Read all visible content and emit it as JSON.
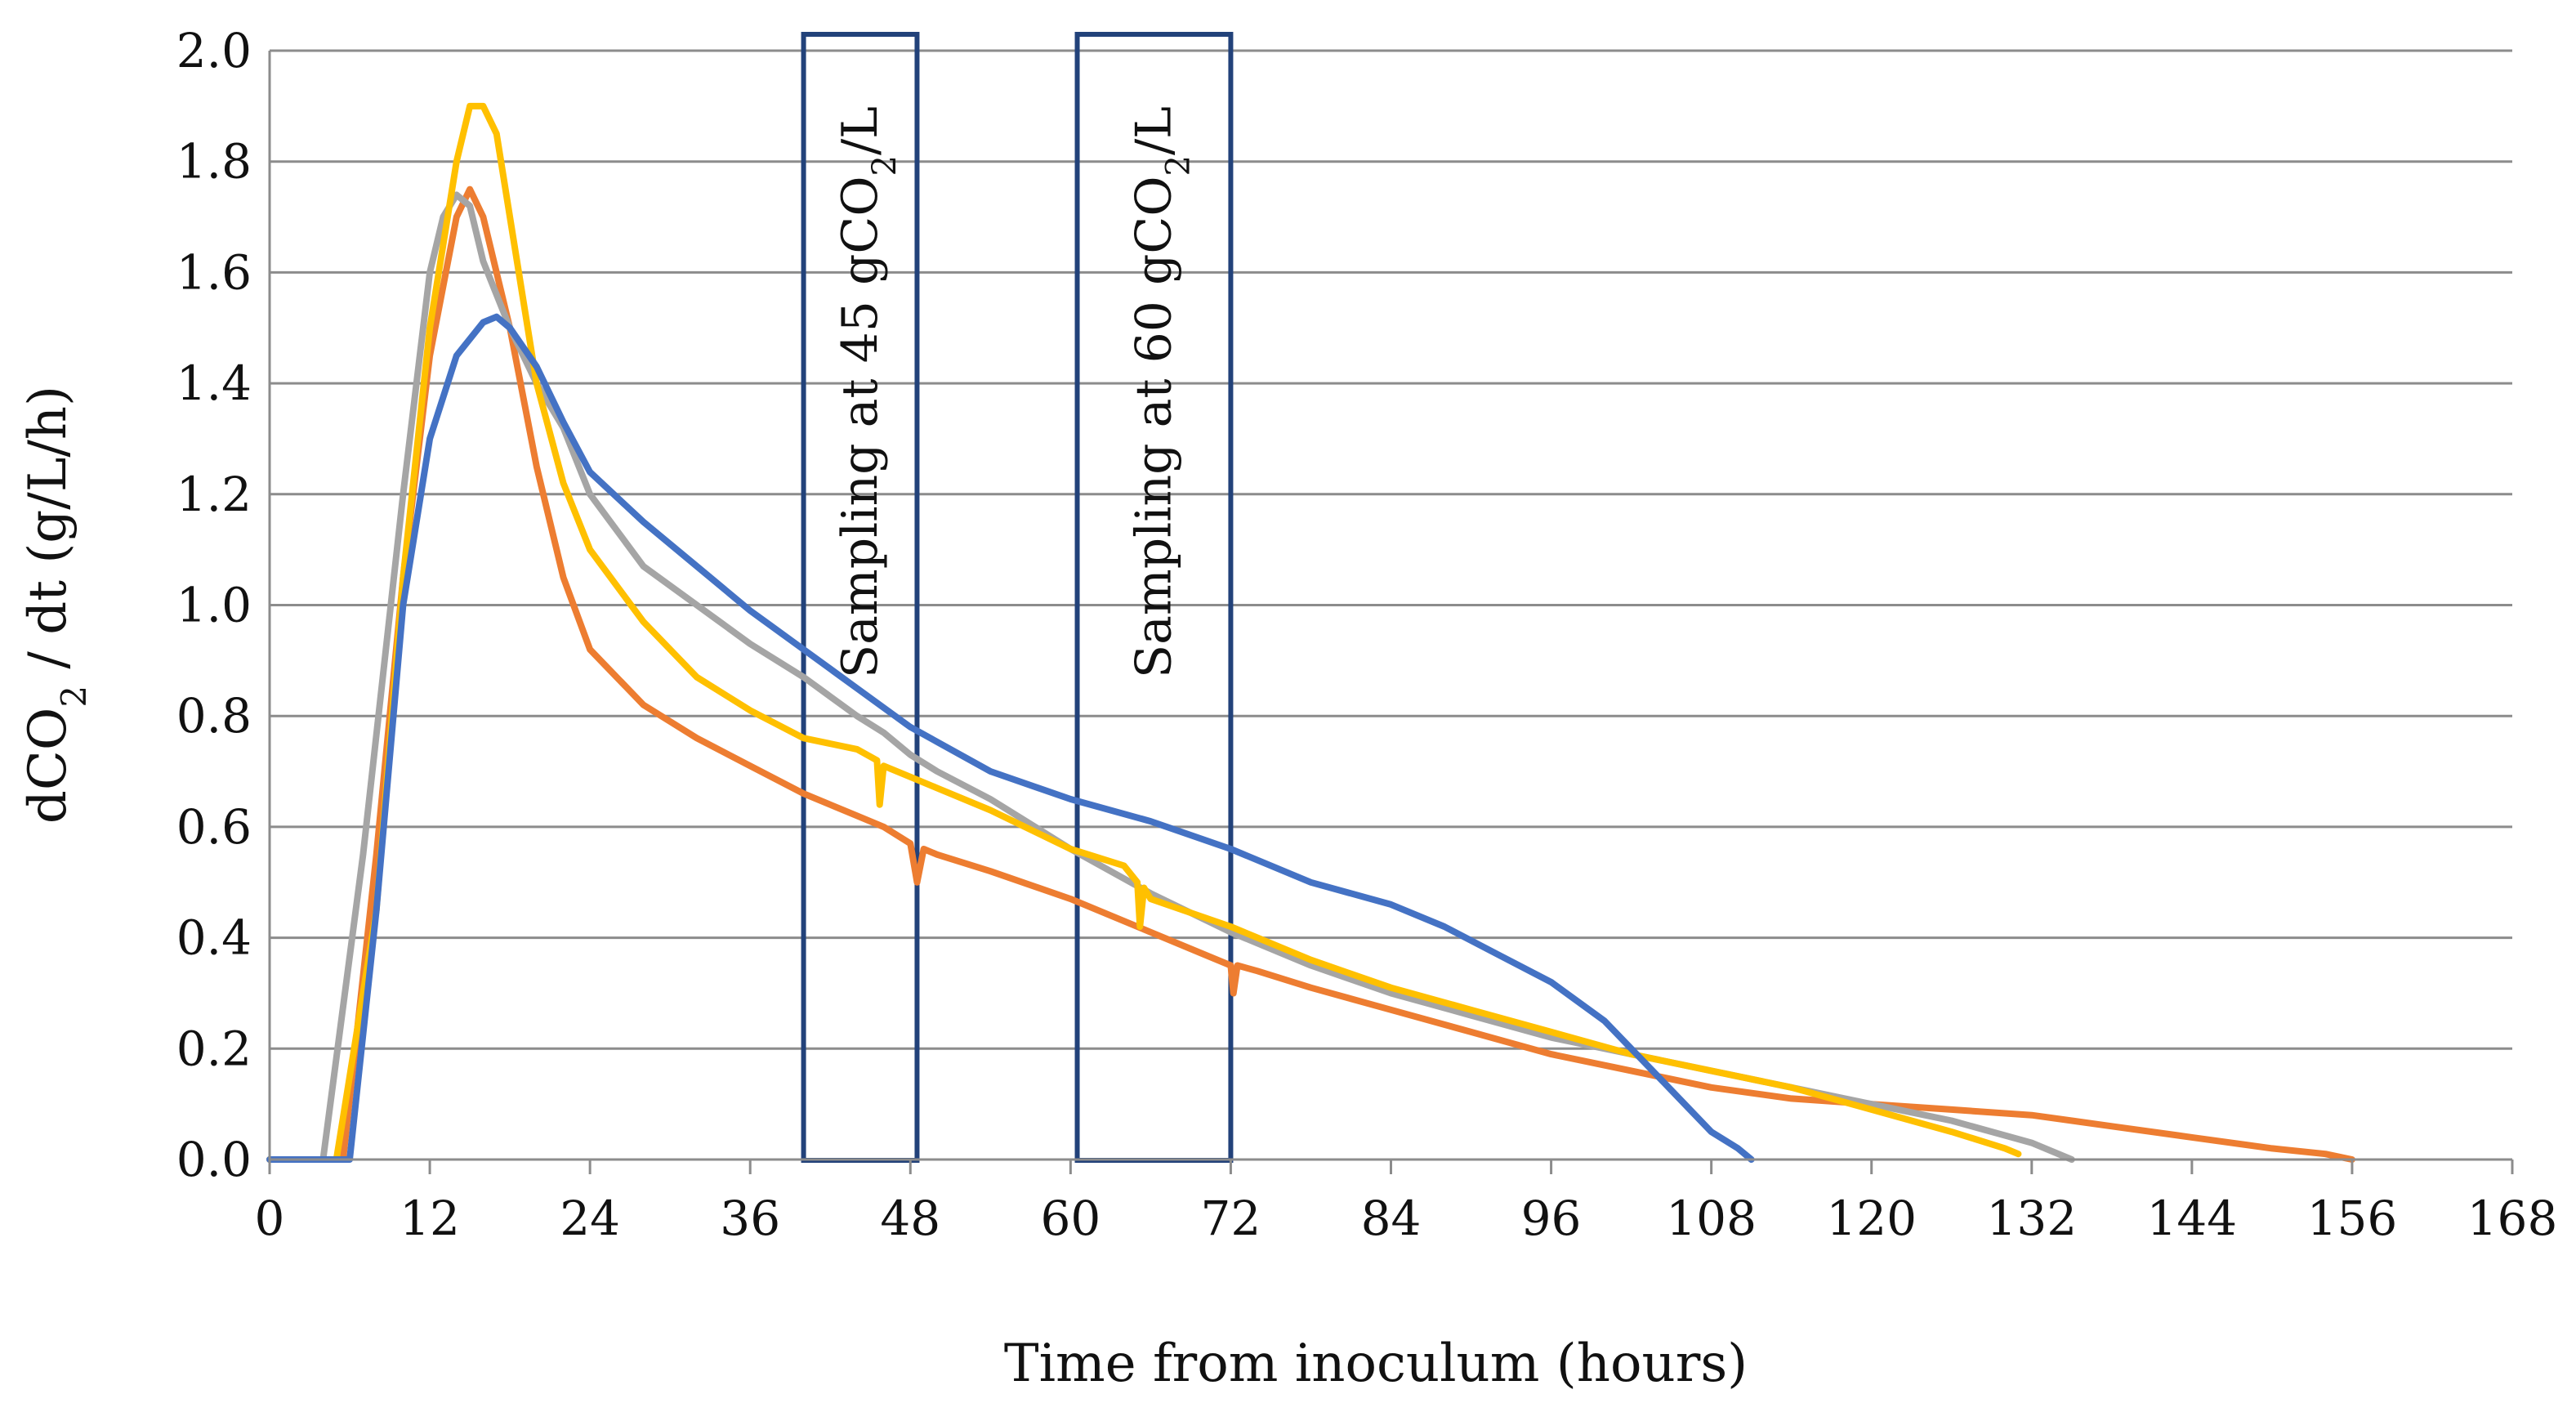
{
  "chart_data": {
    "type": "line",
    "title": "",
    "xlabel": "Time from inoculum (hours)",
    "ylabel_parts": {
      "prefix": "dCO",
      "subscript": "2",
      "suffix": " / dt (g/L/h)"
    },
    "xlim": [
      0,
      168
    ],
    "ylim": [
      0,
      2.0
    ],
    "x_ticks": [
      0,
      12,
      24,
      36,
      48,
      60,
      72,
      84,
      96,
      108,
      120,
      132,
      144,
      156,
      168
    ],
    "y_ticks": [
      "0.0",
      "0.2",
      "0.4",
      "0.6",
      "0.8",
      "1.0",
      "1.2",
      "1.4",
      "1.6",
      "1.8",
      "2.0"
    ],
    "grid": "horizontal",
    "legend": "none",
    "annotations": [
      {
        "x_start": 40,
        "x_end": 48.5,
        "label_prefix": "Sampling at 45 gCO",
        "label_sub": "2",
        "label_suffix": "/L"
      },
      {
        "x_start": 60.5,
        "x_end": 72,
        "label_prefix": "Sampling at 60 gCO",
        "label_sub": "2",
        "label_suffix": "/L"
      }
    ],
    "series": [
      {
        "name": "orange",
        "color": "#ED7D31",
        "x": [
          0,
          5.5,
          8,
          10,
          12,
          14,
          15,
          16,
          18,
          20,
          22,
          24,
          28,
          32,
          36,
          40,
          44,
          46,
          48,
          48.5,
          49,
          50,
          54,
          60,
          66,
          70,
          72,
          72.2,
          72.5,
          74,
          78,
          84,
          90,
          96,
          102,
          108,
          114,
          120,
          126,
          132,
          138,
          144,
          150,
          154,
          156
        ],
        "y": [
          0,
          0,
          0.55,
          1.05,
          1.45,
          1.7,
          1.75,
          1.7,
          1.5,
          1.25,
          1.05,
          0.92,
          0.82,
          0.76,
          0.71,
          0.66,
          0.62,
          0.6,
          0.57,
          0.5,
          0.56,
          0.55,
          0.52,
          0.47,
          0.41,
          0.37,
          0.35,
          0.3,
          0.35,
          0.34,
          0.31,
          0.27,
          0.23,
          0.19,
          0.16,
          0.13,
          0.11,
          0.1,
          0.09,
          0.08,
          0.06,
          0.04,
          0.02,
          0.01,
          0
        ]
      },
      {
        "name": "gray",
        "color": "#A5A5A5",
        "x": [
          0,
          4,
          7,
          10,
          12,
          13,
          14,
          15,
          16,
          18,
          20,
          22,
          24,
          28,
          32,
          36,
          40,
          44,
          46,
          48,
          50,
          54,
          60,
          66,
          72,
          78,
          84,
          90,
          96,
          102,
          108,
          114,
          120,
          126,
          132,
          135
        ],
        "y": [
          0,
          0,
          0.55,
          1.2,
          1.6,
          1.7,
          1.74,
          1.72,
          1.62,
          1.5,
          1.4,
          1.32,
          1.2,
          1.07,
          1.0,
          0.93,
          0.87,
          0.8,
          0.77,
          0.73,
          0.7,
          0.65,
          0.56,
          0.48,
          0.41,
          0.35,
          0.3,
          0.26,
          0.22,
          0.19,
          0.16,
          0.13,
          0.1,
          0.07,
          0.03,
          0
        ]
      },
      {
        "name": "yellow",
        "color": "#FFC000",
        "x": [
          0,
          5,
          8,
          10,
          12,
          14,
          15,
          16,
          17,
          18,
          20,
          22,
          24,
          28,
          32,
          36,
          40,
          44,
          45.5,
          45.7,
          46,
          48,
          50,
          54,
          60,
          64,
          65,
          65.2,
          65.5,
          66,
          72,
          78,
          84,
          90,
          96,
          102,
          108,
          114,
          120,
          126,
          130,
          131
        ],
        "y": [
          0,
          0,
          0.45,
          1.05,
          1.5,
          1.8,
          1.9,
          1.9,
          1.85,
          1.7,
          1.4,
          1.22,
          1.1,
          0.97,
          0.87,
          0.81,
          0.76,
          0.74,
          0.72,
          0.64,
          0.71,
          0.69,
          0.67,
          0.63,
          0.56,
          0.53,
          0.5,
          0.42,
          0.49,
          0.47,
          0.42,
          0.36,
          0.31,
          0.27,
          0.23,
          0.19,
          0.16,
          0.13,
          0.09,
          0.05,
          0.02,
          0.01
        ]
      },
      {
        "name": "blue",
        "color": "#4472C4",
        "x": [
          0,
          6,
          8,
          10,
          12,
          14,
          16,
          17,
          18,
          20,
          22,
          24,
          28,
          32,
          36,
          40,
          44,
          48,
          54,
          60,
          66,
          72,
          78,
          84,
          88,
          92,
          96,
          100,
          104,
          106,
          108,
          110,
          111
        ],
        "y": [
          0,
          0,
          0.45,
          1.0,
          1.3,
          1.45,
          1.51,
          1.52,
          1.5,
          1.43,
          1.33,
          1.24,
          1.15,
          1.07,
          0.99,
          0.92,
          0.85,
          0.78,
          0.7,
          0.65,
          0.61,
          0.56,
          0.5,
          0.46,
          0.42,
          0.37,
          0.32,
          0.25,
          0.15,
          0.1,
          0.05,
          0.02,
          0
        ]
      }
    ]
  }
}
